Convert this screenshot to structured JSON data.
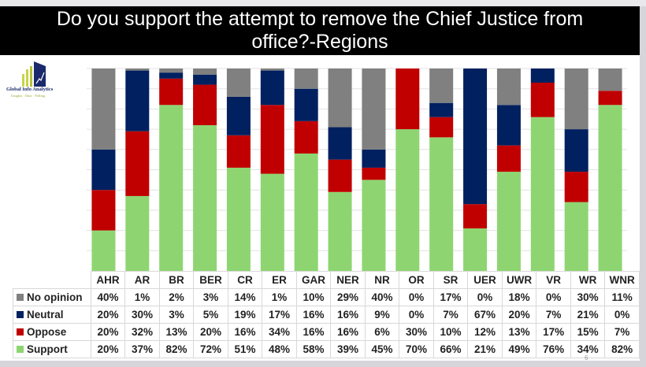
{
  "title": {
    "line1": "Do you support the attempt to remove the Chief Justice from",
    "line2": "office?-Regions"
  },
  "logo": {
    "name": "Global Info Analytics",
    "tagline": "Insights · Data · Polling"
  },
  "slide_number": "6",
  "colors": {
    "no_opinion": "#808080",
    "neutral": "#002060",
    "oppose": "#c00000",
    "support": "#8ed571",
    "title_bg": "#000000"
  },
  "chart_data": {
    "type": "bar",
    "stacked": true,
    "title": "Do you support the attempt to remove the Chief Justice from office?-Regions",
    "xlabel": "",
    "ylabel": "",
    "ylim": [
      0,
      100
    ],
    "grid": true,
    "legend": "table-bottom-left",
    "categories": [
      "AHR",
      "AR",
      "BR",
      "BER",
      "CR",
      "ER",
      "GAR",
      "NER",
      "NR",
      "OR",
      "SR",
      "UER",
      "UWR",
      "VR",
      "WR",
      "WNR"
    ],
    "series": [
      {
        "key": "no_opinion",
        "name": "No opinion",
        "values": [
          40,
          1,
          2,
          3,
          14,
          1,
          10,
          29,
          40,
          0,
          17,
          0,
          18,
          0,
          30,
          11
        ],
        "labels": [
          "40%",
          "1%",
          "2%",
          "3%",
          "14%",
          "1%",
          "10%",
          "29%",
          "40%",
          "0%",
          "17%",
          "0%",
          "18%",
          "0%",
          "30%",
          "11%"
        ]
      },
      {
        "key": "neutral",
        "name": "Neutral",
        "values": [
          20,
          30,
          3,
          5,
          19,
          17,
          16,
          16,
          9,
          0,
          7,
          67,
          20,
          7,
          21,
          0
        ],
        "labels": [
          "20%",
          "30%",
          "3%",
          "5%",
          "19%",
          "17%",
          "16%",
          "16%",
          "9%",
          "0%",
          "7%",
          "67%",
          "20%",
          "7%",
          "21%",
          "0%"
        ]
      },
      {
        "key": "oppose",
        "name": "Oppose",
        "values": [
          20,
          32,
          13,
          20,
          16,
          34,
          16,
          16,
          6,
          30,
          10,
          12,
          13,
          17,
          15,
          7
        ],
        "labels": [
          "20%",
          "32%",
          "13%",
          "20%",
          "16%",
          "34%",
          "16%",
          "16%",
          "6%",
          "30%",
          "10%",
          "12%",
          "13%",
          "17%",
          "15%",
          "7%"
        ]
      },
      {
        "key": "support",
        "name": "Support",
        "values": [
          20,
          37,
          82,
          72,
          51,
          48,
          58,
          39,
          45,
          70,
          66,
          21,
          49,
          76,
          34,
          82
        ],
        "labels": [
          "20%",
          "37%",
          "82%",
          "72%",
          "51%",
          "48%",
          "58%",
          "39%",
          "45%",
          "70%",
          "66%",
          "21%",
          "49%",
          "76%",
          "34%",
          "82%"
        ]
      }
    ]
  }
}
